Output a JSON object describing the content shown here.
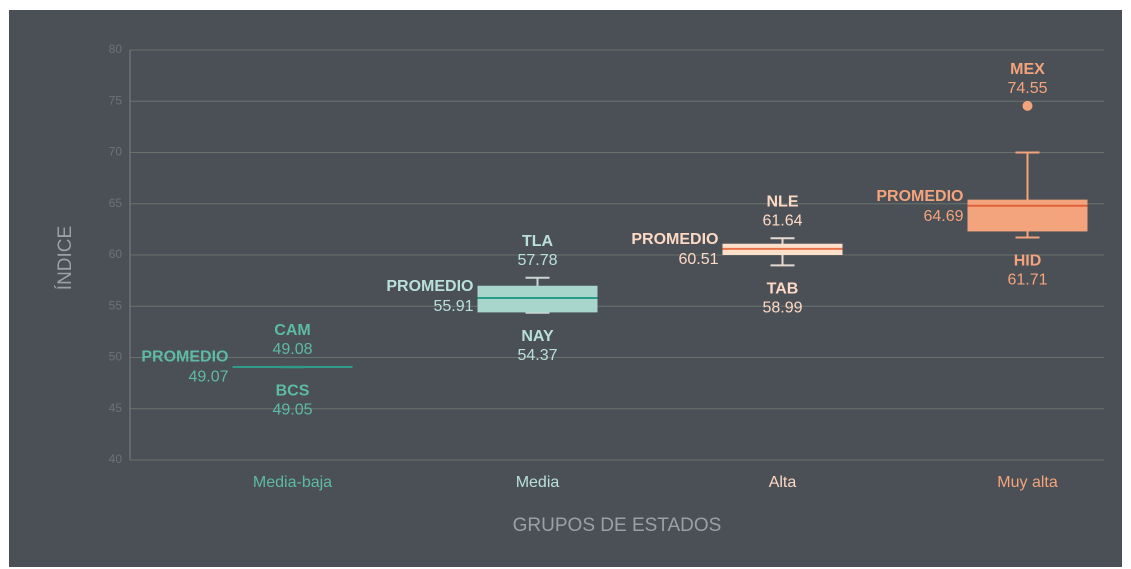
{
  "chart_data": {
    "type": "box",
    "x_label": "GRUPOS DE ESTADOS",
    "y_label": "ÍNDICE",
    "ylim": [
      40,
      80
    ],
    "yticks": [
      40,
      45,
      50,
      55,
      60,
      65,
      70,
      75,
      80
    ],
    "grid": true,
    "categories": [
      "Media-baja",
      "Media",
      "Alta",
      "Muy alta"
    ],
    "boxes": [
      {
        "fill": "#2e9c88",
        "line_color": "#2e9c88",
        "whisker_color": "#2e9c88",
        "text_color": "#5dbaa6",
        "low": 49.05,
        "q1": 49.05,
        "median": 49.07,
        "q3": 49.08,
        "high": 49.08,
        "mean": 49.07,
        "mean_label": "PROMEDIO",
        "annotations": [
          {
            "text": "CAM",
            "value": 49.08
          },
          {
            "text": "BCS",
            "value": 49.05
          }
        ]
      },
      {
        "fill": "#a8d5cc",
        "line_color": "#2a9d8a",
        "whisker_color": "#c9d6d2",
        "text_color": "#b9e0d8",
        "low": 54.37,
        "q1": 54.4,
        "median": 55.8,
        "q3": 57.0,
        "high": 57.78,
        "mean": 55.91,
        "mean_label": "PROMEDIO",
        "annotations": [
          {
            "text": "TLA",
            "value": 57.78
          },
          {
            "text": "NAY",
            "value": 54.37
          }
        ]
      },
      {
        "fill": "#fde0cc",
        "line_color": "#e8734a",
        "whisker_color": "#e6d9d0",
        "text_color": "#fcd9c4",
        "low": 58.99,
        "q1": 60.0,
        "median": 60.6,
        "q3": 61.1,
        "high": 61.64,
        "mean": 60.51,
        "mean_label": "PROMEDIO",
        "annotations": [
          {
            "text": "NLE",
            "value": 61.64
          },
          {
            "text": "TAB",
            "value": 58.99
          }
        ]
      },
      {
        "fill": "#f4a47c",
        "line_color": "#e0603a",
        "whisker_color": "#f4a47c",
        "text_color": "#f4a47c",
        "low": 61.71,
        "q1": 62.3,
        "median": 64.8,
        "q3": 65.4,
        "high": 70.0,
        "outliers": [
          74.55
        ],
        "mean": 64.69,
        "mean_label": "PROMEDIO",
        "annotations": [
          {
            "text": "MEX",
            "value": 74.55
          },
          {
            "text": "HID",
            "value": 61.71
          }
        ]
      }
    ]
  }
}
